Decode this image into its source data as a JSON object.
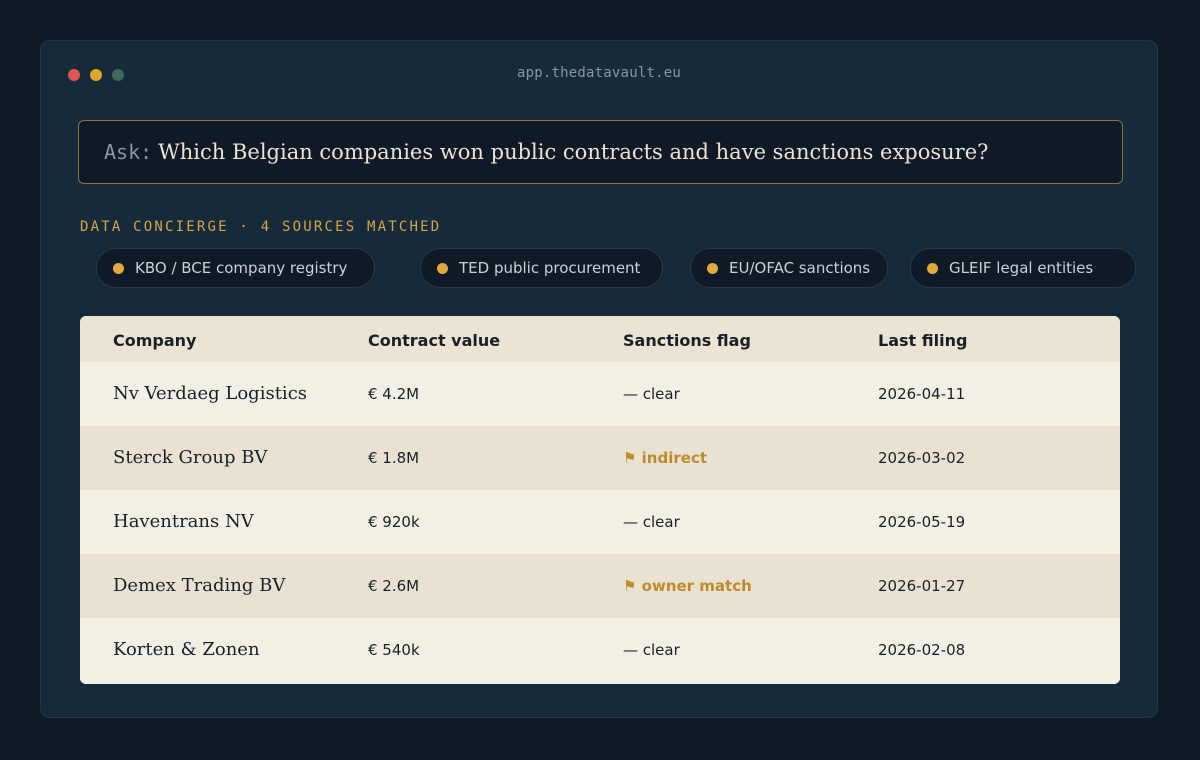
{
  "window": {
    "url": "app.thedatavault.eu"
  },
  "ask": {
    "label": "Ask:",
    "question": "Which Belgian companies won public contracts and have sanctions exposure?"
  },
  "concierge": {
    "heading": "DATA CONCIERGE · 4 SOURCES MATCHED",
    "sources": [
      {
        "label": "KBO / BCE company registry",
        "dot_color": "#e0aa3e"
      },
      {
        "label": "TED public procurement",
        "dot_color": "#e0aa3e"
      },
      {
        "label": "EU/OFAC sanctions",
        "dot_color": "#e0aa3e"
      },
      {
        "label": "GLEIF legal entities",
        "dot_color": "#e0aa3e"
      }
    ]
  },
  "table": {
    "columns": [
      "Company",
      "Contract value",
      "Sanctions flag",
      "Last filing"
    ],
    "rows": [
      {
        "company": "Nv Verdaeg Logistics",
        "value": "€ 4.2M",
        "flag": "— clear",
        "flagged": false,
        "filing": "2026-04-11"
      },
      {
        "company": "Sterck Group BV",
        "value": "€ 1.8M",
        "flag": "⚑ indirect",
        "flagged": true,
        "filing": "2026-03-02"
      },
      {
        "company": "Haventrans NV",
        "value": "€ 920k",
        "flag": "— clear",
        "flagged": false,
        "filing": "2026-05-19"
      },
      {
        "company": "Demex Trading BV",
        "value": "€ 2.6M",
        "flag": "⚑ owner match",
        "flagged": true,
        "filing": "2026-01-27"
      },
      {
        "company": "Korten & Zonen",
        "value": "€ 540k",
        "flag": "— clear",
        "flagged": false,
        "filing": "2026-02-08"
      }
    ]
  },
  "colors": {
    "accent": "#d9a53c",
    "flag_hit": "#c08a2c",
    "background": "#0f1a26",
    "panel": "#172a3c"
  }
}
